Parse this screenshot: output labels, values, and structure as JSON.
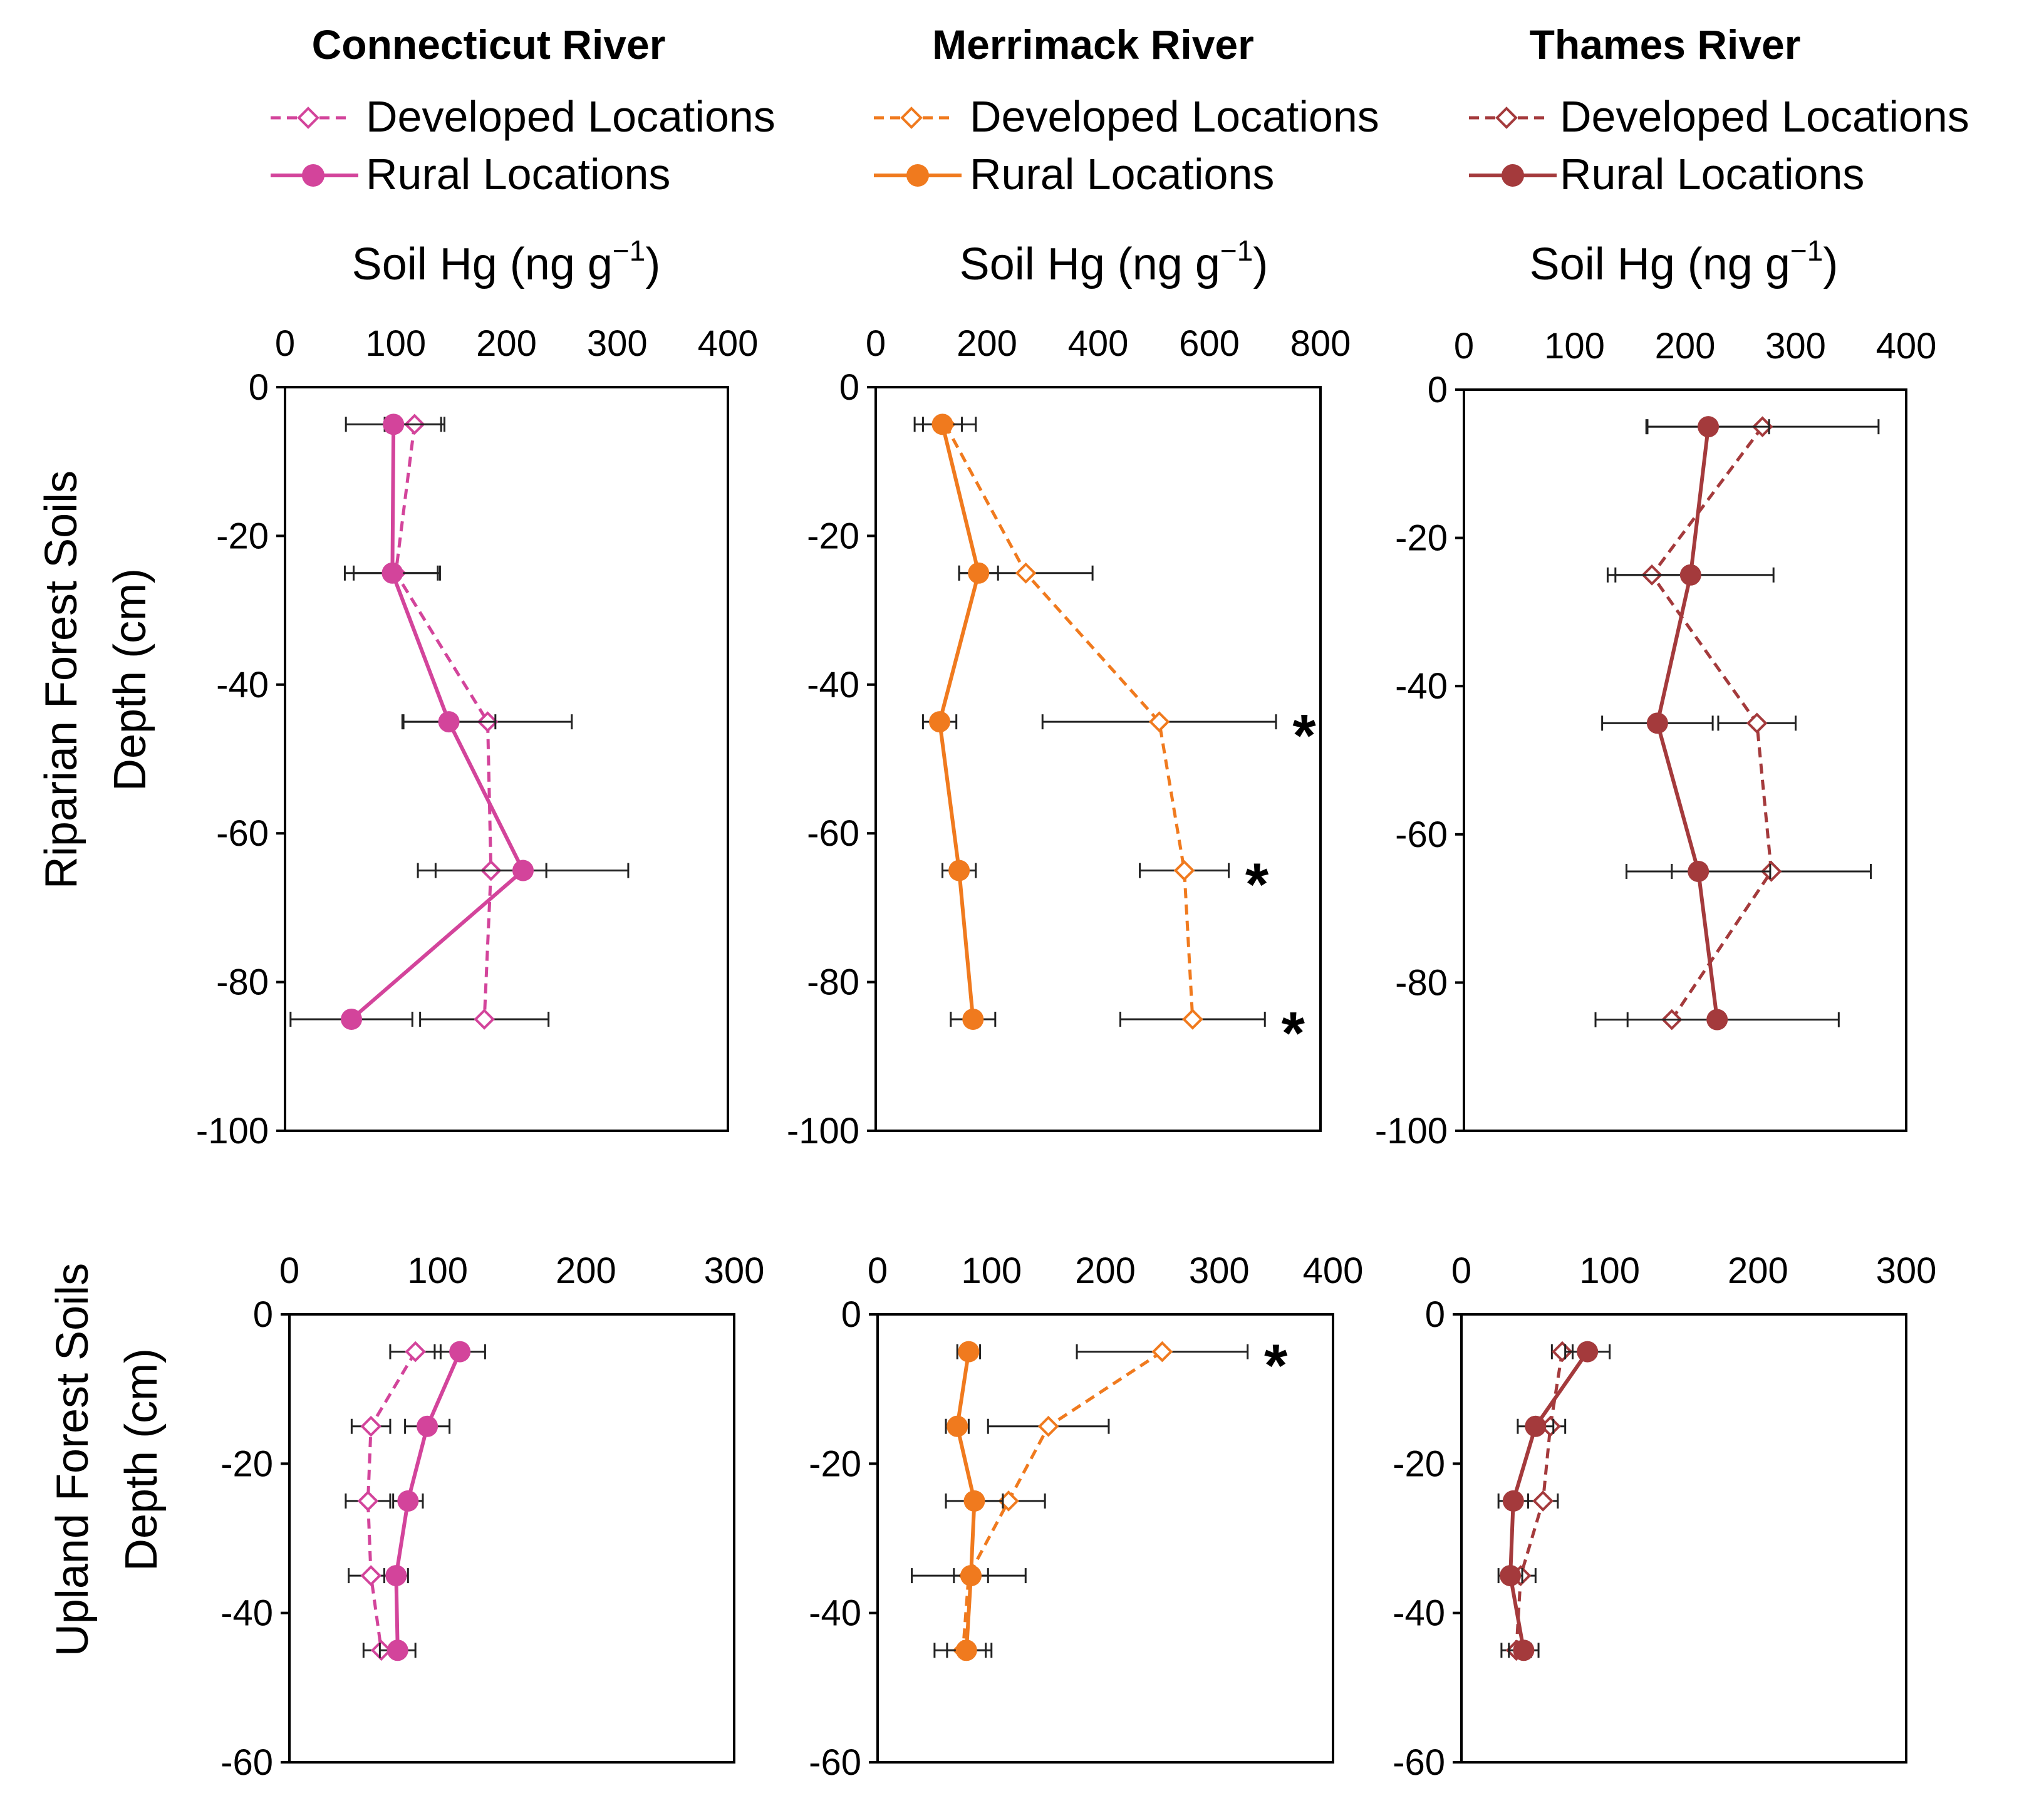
{
  "rivers": [
    {
      "name": "Connecticut River",
      "color": "#d3449b"
    },
    {
      "name": "Merrimack River",
      "color": "#f07a1e"
    },
    {
      "name": "Thames River",
      "color": "#a43a3c"
    }
  ],
  "legend": {
    "developed": "Developed Locations",
    "rural": "Rural Locations"
  },
  "axis_title": {
    "prefix": "Soil Hg (ng g",
    "sup": "−1",
    "suffix": ")"
  },
  "row_labels": [
    {
      "line1": "Riparian Forest Soils",
      "line2": "Depth (cm)"
    },
    {
      "line1": "Upland Forest Soils",
      "line2": "Depth (cm)"
    }
  ],
  "significance_mark": "*",
  "chart_data": [
    {
      "type": "line",
      "row": "riparian",
      "river": "Connecticut River",
      "xlabel": "Soil Hg (ng g−1)",
      "ylabel": "Depth (cm)",
      "xlim": [
        0,
        400
      ],
      "xticks": [
        "0",
        "100",
        "200",
        "300",
        "400"
      ],
      "ylim": [
        -100,
        0
      ],
      "yticks": [
        "0",
        "-20",
        "-40",
        "-60",
        "-80",
        "-100"
      ],
      "depths": [
        -5,
        -25,
        -45,
        -65,
        -85
      ],
      "series": [
        {
          "name": "Developed Locations",
          "style": "dashed",
          "values": [
            117,
            100,
            183,
            186,
            180
          ],
          "errors": [
            27,
            38,
            76,
            50,
            58
          ]
        },
        {
          "name": "Rural Locations",
          "style": "solid",
          "values": [
            98,
            97,
            148,
            215,
            60
          ],
          "errors": [
            43,
            43,
            42,
            95,
            55
          ]
        }
      ],
      "significant_depths": []
    },
    {
      "type": "line",
      "row": "riparian",
      "river": "Merrimack River",
      "xlabel": "Soil Hg (ng g−1)",
      "ylabel": "Depth (cm)",
      "xlim": [
        0,
        800
      ],
      "xticks": [
        "0",
        "200",
        "400",
        "600",
        "800"
      ],
      "ylim": [
        -100,
        0
      ],
      "yticks": [
        "0",
        "-20",
        "-40",
        "-60",
        "-80",
        "-100"
      ],
      "depths": [
        -5,
        -25,
        -45,
        -65,
        -85
      ],
      "series": [
        {
          "name": "Developed Locations",
          "style": "dashed",
          "values": [
            125,
            270,
            510,
            555,
            570
          ],
          "errors": [
            55,
            120,
            210,
            80,
            130
          ]
        },
        {
          "name": "Rural Locations",
          "style": "solid",
          "values": [
            120,
            185,
            115,
            150,
            175
          ],
          "errors": [
            35,
            35,
            30,
            30,
            40
          ]
        }
      ],
      "significant_depths": [
        -45,
        -65,
        -85
      ]
    },
    {
      "type": "line",
      "row": "riparian",
      "river": "Thames River",
      "xlabel": "Soil Hg (ng g−1)",
      "ylabel": "Depth (cm)",
      "xlim": [
        0,
        400
      ],
      "xticks": [
        "0",
        "100",
        "200",
        "300",
        "400"
      ],
      "ylim": [
        -100,
        0
      ],
      "yticks": [
        "0",
        "-20",
        "-40",
        "-60",
        "-80",
        "-100"
      ],
      "depths": [
        -5,
        -25,
        -45,
        -65,
        -85
      ],
      "series": [
        {
          "name": "Developed Locations",
          "style": "dashed",
          "values": [
            270,
            170,
            265,
            278,
            188
          ],
          "errors": [
            105,
            33,
            35,
            90,
            40
          ]
        },
        {
          "name": "Rural Locations",
          "style": "solid",
          "values": [
            221,
            205,
            175,
            212,
            229
          ],
          "errors": [
            55,
            75,
            50,
            65,
            110
          ]
        }
      ],
      "significant_depths": []
    },
    {
      "type": "line",
      "row": "upland",
      "river": "Connecticut River",
      "xlabel": "Soil Hg (ng g−1)",
      "ylabel": "Depth (cm)",
      "xlim": [
        0,
        300
      ],
      "xticks": [
        "0",
        "100",
        "200",
        "300"
      ],
      "ylim": [
        -60,
        0
      ],
      "yticks": [
        "0",
        "-20",
        "-40",
        "-60"
      ],
      "depths": [
        -5,
        -15,
        -25,
        -35,
        -45
      ],
      "series": [
        {
          "name": "Developed Locations",
          "style": "dashed",
          "values": [
            85,
            55,
            53,
            55,
            62
          ],
          "errors": [
            17,
            13,
            15,
            15,
            12
          ]
        },
        {
          "name": "Rural Locations",
          "style": "solid",
          "values": [
            115,
            93,
            80,
            72,
            73
          ],
          "errors": [
            17,
            15,
            10,
            8,
            12
          ]
        }
      ],
      "significant_depths": []
    },
    {
      "type": "line",
      "row": "upland",
      "river": "Merrimack River",
      "xlabel": "Soil Hg (ng g−1)",
      "ylabel": "Depth (cm)",
      "xlim": [
        0,
        400
      ],
      "xticks": [
        "0",
        "100",
        "200",
        "300",
        "400"
      ],
      "ylim": [
        -60,
        0
      ],
      "yticks": [
        "0",
        "-20",
        "-40",
        "-60"
      ],
      "depths": [
        -5,
        -15,
        -25,
        -35,
        -45
      ],
      "series": [
        {
          "name": "Developed Locations",
          "style": "dashed",
          "values": [
            250,
            150,
            115,
            80,
            75
          ],
          "errors": [
            75,
            53,
            32,
            50,
            25
          ]
        },
        {
          "name": "Rural Locations",
          "style": "solid",
          "values": [
            80,
            70,
            85,
            82,
            78
          ],
          "errors": [
            10,
            10,
            25,
            15,
            17
          ]
        }
      ],
      "significant_depths": [
        -5
      ]
    },
    {
      "type": "line",
      "row": "upland",
      "river": "Thames River",
      "xlabel": "Soil Hg (ng g−1)",
      "ylabel": "Depth (cm)",
      "xlim": [
        0,
        300
      ],
      "xticks": [
        "0",
        "100",
        "200",
        "300"
      ],
      "ylim": [
        -60,
        0
      ],
      "yticks": [
        "0",
        "-20",
        "-40",
        "-60"
      ],
      "depths": [
        -5,
        -15,
        -25,
        -35,
        -45
      ],
      "series": [
        {
          "name": "Developed Locations",
          "style": "dashed",
          "values": [
            68,
            60,
            55,
            40,
            37
          ],
          "errors": [
            7,
            10,
            10,
            10,
            10
          ]
        },
        {
          "name": "Rural Locations",
          "style": "solid",
          "values": [
            85,
            50,
            35,
            33,
            42
          ],
          "errors": [
            15,
            12,
            10,
            8,
            10
          ]
        }
      ],
      "significant_depths": []
    }
  ]
}
